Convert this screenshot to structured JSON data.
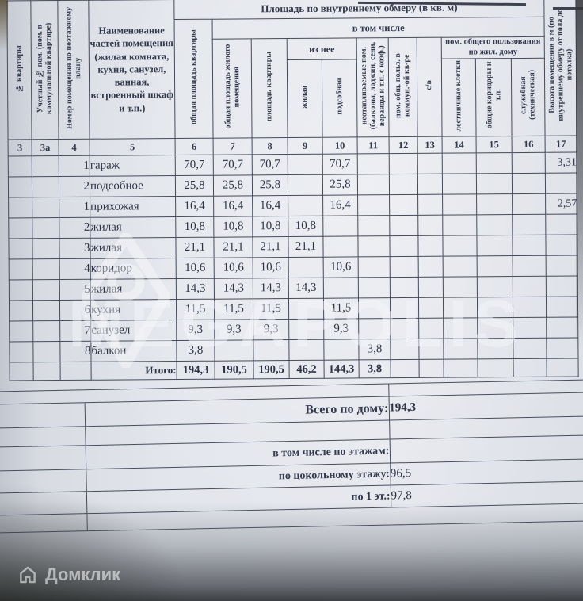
{
  "colors": {
    "ink": "#454b5c",
    "text": "#2e3446",
    "paper": "#e4e7ed"
  },
  "watermarks": {
    "megapolis_text": "MEGAPOLIS",
    "domklik_text": "Домклик"
  },
  "main_table": {
    "group_headers": {
      "area": "Площадь по внутреннему обмеру (в кв. м)",
      "including": "в том числе",
      "of_which": "из нее",
      "common_use": "пом. общего пользования по жил. дому"
    },
    "columns": {
      "c3": "№ квартиры",
      "c3a": "Учетный № пом. (пом. в коммунальной квартире)",
      "c4": "Номер помещения по поэтажному плану",
      "c5": "Наименование частей помещения (жилая комната, кухня, санузел, ванная, встроенный шкаф и т.п.)",
      "c6": "общая площадь квартиры",
      "c7": "общая площадь жилого помещения",
      "c8": "площадь квартиры",
      "c9": "жилая",
      "c10": "подсобная",
      "c11": "неотапливаемые пом. (балконы, лоджии, сени, веранды и т.п. с коэф.)",
      "c12": "пом. общ. польз. в коммун.-ой кв-ре",
      "c13": "с/в",
      "c14": "лестничные клетки",
      "c15": "общие коридоры и т.п.",
      "c16": "служебная (техническая)",
      "c17": "Высота помещения в м (по внутреннему обмеру от пола до потолка)"
    },
    "column_numbers": [
      "3",
      "3а",
      "4",
      "5",
      "6",
      "7",
      "8",
      "9",
      "10",
      "11",
      "12",
      "13",
      "14",
      "15",
      "16",
      "17"
    ],
    "rows": [
      {
        "n": "1",
        "name": "гараж",
        "c6": "70,7",
        "c7": "70,7",
        "c8": "70,7",
        "c9": "",
        "c10": "70,7",
        "c11": "",
        "c17": "3,31"
      },
      {
        "n": "2",
        "name": "подсобное",
        "c6": "25,8",
        "c7": "25,8",
        "c8": "25,8",
        "c9": "",
        "c10": "25,8",
        "c11": "",
        "c17": ""
      },
      {
        "n": "1",
        "name": "прихожая",
        "c6": "16,4",
        "c7": "16,4",
        "c8": "16,4",
        "c9": "",
        "c10": "16,4",
        "c11": "",
        "c17": "2,57"
      },
      {
        "n": "2",
        "name": "жилая",
        "c6": "10,8",
        "c7": "10,8",
        "c8": "10,8",
        "c9": "10,8",
        "c10": "",
        "c11": "",
        "c17": ""
      },
      {
        "n": "3",
        "name": "жилая",
        "c6": "21,1",
        "c7": "21,1",
        "c8": "21,1",
        "c9": "21,1",
        "c10": "",
        "c11": "",
        "c17": ""
      },
      {
        "n": "4",
        "name": "коридор",
        "c6": "10,6",
        "c7": "10,6",
        "c8": "10,6",
        "c9": "",
        "c10": "10,6",
        "c11": "",
        "c17": ""
      },
      {
        "n": "5",
        "name": "жилая",
        "c6": "14,3",
        "c7": "14,3",
        "c8": "14,3",
        "c9": "14,3",
        "c10": "",
        "c11": "",
        "c17": ""
      },
      {
        "n": "6",
        "name": "кухня",
        "c6": "11,5",
        "c7": "11,5",
        "c8": "11,5",
        "c9": "",
        "c10": "11,5",
        "c11": "",
        "c17": ""
      },
      {
        "n": "7",
        "name": "санузел",
        "c6": "9,3",
        "c7": "9,3",
        "c8": "9,3",
        "c9": "",
        "c10": "9,3",
        "c11": "",
        "c17": ""
      },
      {
        "n": "8",
        "name": "балкон",
        "c6": "3,8",
        "c7": "",
        "c8": "",
        "c9": "",
        "c10": "",
        "c11": "3,8",
        "c17": ""
      }
    ],
    "total": {
      "label": "Итого:",
      "c6": "194,3",
      "c7": "190,5",
      "c8": "190,5",
      "c9": "46,2",
      "c10": "144,3",
      "c11": "3,8"
    }
  },
  "summary": {
    "rows": [
      {
        "label": "Всего по дому:",
        "value": "194,3"
      },
      {
        "label": "в том числе по этажам:",
        "value": ""
      },
      {
        "label": "по цокольному этажу:",
        "value": "96,5"
      },
      {
        "label": "по 1 эт.:",
        "value": "97,8"
      }
    ]
  }
}
